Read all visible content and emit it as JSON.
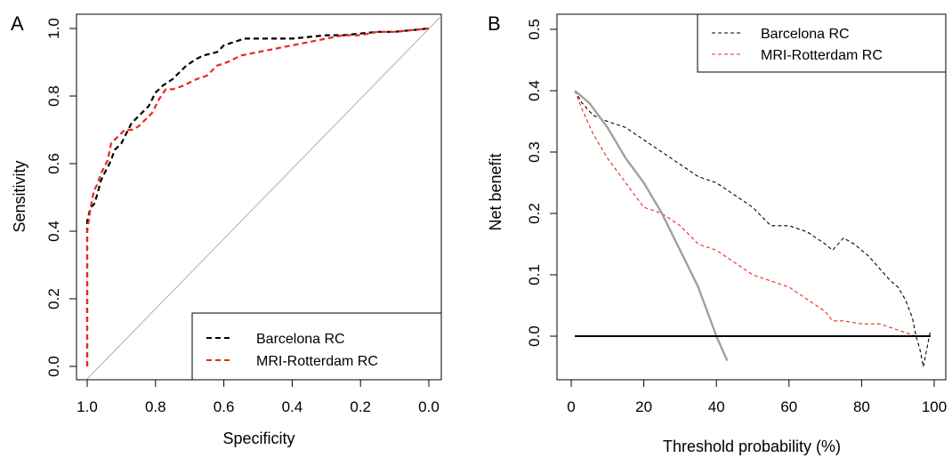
{
  "chart_data": [
    {
      "type": "line",
      "panel": "A",
      "xlabel": "Specificity",
      "ylabel": "Sensitivity",
      "xlim": [
        1.0,
        0.0
      ],
      "ylim": [
        0.0,
        1.0
      ],
      "xticks": [
        "1.0",
        "0.8",
        "0.6",
        "0.4",
        "0.2",
        "0.0"
      ],
      "yticks": [
        "0.0",
        "0.2",
        "0.4",
        "0.6",
        "0.8",
        "1.0"
      ],
      "legend_position": "bottom-right",
      "reference_line": "diagonal",
      "series": [
        {
          "name": "Barcelona RC",
          "color": "#000000",
          "dash": "dashed",
          "x": [
            1.0,
            1.0,
            0.99,
            0.98,
            0.97,
            0.96,
            0.95,
            0.93,
            0.92,
            0.9,
            0.89,
            0.87,
            0.84,
            0.82,
            0.8,
            0.78,
            0.75,
            0.73,
            0.71,
            0.68,
            0.66,
            0.62,
            0.6,
            0.57,
            0.54,
            0.51,
            0.45,
            0.4,
            0.35,
            0.3,
            0.25,
            0.2,
            0.15,
            0.1,
            0.05,
            0.0
          ],
          "y": [
            0.0,
            0.43,
            0.47,
            0.48,
            0.51,
            0.55,
            0.57,
            0.61,
            0.64,
            0.66,
            0.68,
            0.72,
            0.75,
            0.77,
            0.81,
            0.83,
            0.85,
            0.87,
            0.89,
            0.91,
            0.92,
            0.93,
            0.95,
            0.96,
            0.97,
            0.97,
            0.97,
            0.97,
            0.975,
            0.98,
            0.98,
            0.985,
            0.99,
            0.99,
            0.995,
            1.0
          ]
        },
        {
          "name": "MRI-Rotterdam RC",
          "color": "#e8281f",
          "dash": "dashed",
          "x": [
            1.0,
            1.0,
            0.99,
            0.98,
            0.97,
            0.96,
            0.94,
            0.93,
            0.91,
            0.89,
            0.87,
            0.85,
            0.83,
            0.81,
            0.79,
            0.77,
            0.75,
            0.72,
            0.68,
            0.65,
            0.62,
            0.59,
            0.55,
            0.5,
            0.45,
            0.4,
            0.35,
            0.3,
            0.25,
            0.2,
            0.15,
            0.1,
            0.05,
            0.0
          ],
          "y": [
            0.0,
            0.4,
            0.47,
            0.52,
            0.54,
            0.57,
            0.61,
            0.66,
            0.68,
            0.7,
            0.7,
            0.71,
            0.73,
            0.75,
            0.79,
            0.82,
            0.82,
            0.83,
            0.85,
            0.86,
            0.89,
            0.9,
            0.92,
            0.93,
            0.94,
            0.95,
            0.96,
            0.97,
            0.98,
            0.98,
            0.99,
            0.99,
            0.995,
            1.0
          ]
        }
      ]
    },
    {
      "type": "line",
      "panel": "B",
      "xlabel": "Threshold probability (%)",
      "ylabel": "Net benefit",
      "xlim": [
        0,
        100
      ],
      "ylim": [
        -0.05,
        0.5
      ],
      "xticks": [
        "0",
        "20",
        "40",
        "60",
        "80",
        "100"
      ],
      "yticks": [
        "0.0",
        "0.1",
        "0.2",
        "0.3",
        "0.4",
        "0.5"
      ],
      "legend_position": "top-right",
      "series": [
        {
          "name": "Barcelona RC",
          "color": "#000000",
          "dash": "dashed",
          "x": [
            1,
            3,
            6,
            10,
            15,
            20,
            25,
            30,
            35,
            40,
            45,
            50,
            55,
            60,
            65,
            70,
            72,
            75,
            78,
            80,
            82,
            85,
            88,
            90,
            92,
            94,
            95,
            96,
            97,
            98,
            99
          ],
          "y": [
            0.4,
            0.38,
            0.36,
            0.35,
            0.34,
            0.32,
            0.3,
            0.28,
            0.26,
            0.25,
            0.23,
            0.21,
            0.18,
            0.18,
            0.17,
            0.15,
            0.14,
            0.16,
            0.15,
            0.14,
            0.13,
            0.11,
            0.09,
            0.08,
            0.06,
            0.03,
            0.0,
            -0.02,
            -0.05,
            -0.02,
            0.01
          ]
        },
        {
          "name": "MRI-Rotterdam RC",
          "color": "#e8281f",
          "dash": "dashed",
          "x": [
            1,
            3,
            6,
            10,
            15,
            20,
            25,
            30,
            35,
            40,
            45,
            50,
            55,
            60,
            65,
            70,
            72,
            75,
            80,
            85,
            90,
            95,
            99
          ],
          "y": [
            0.4,
            0.37,
            0.33,
            0.29,
            0.25,
            0.21,
            0.2,
            0.18,
            0.15,
            0.14,
            0.12,
            0.1,
            0.09,
            0.08,
            0.06,
            0.04,
            0.025,
            0.025,
            0.02,
            0.02,
            0.01,
            0.0,
            0.0
          ]
        },
        {
          "name": "",
          "color": "#a0a0a0",
          "dash": "solid",
          "x": [
            1,
            5,
            10,
            15,
            20,
            25,
            30,
            35,
            40,
            43
          ],
          "y": [
            0.4,
            0.38,
            0.34,
            0.29,
            0.25,
            0.2,
            0.14,
            0.08,
            0.0,
            -0.04
          ]
        },
        {
          "name": "",
          "color": "#000000",
          "dash": "solid",
          "x": [
            1,
            99
          ],
          "y": [
            0.0,
            0.0
          ]
        }
      ]
    }
  ],
  "panels": {
    "a": {
      "letter": "A"
    },
    "b": {
      "letter": "B"
    }
  }
}
